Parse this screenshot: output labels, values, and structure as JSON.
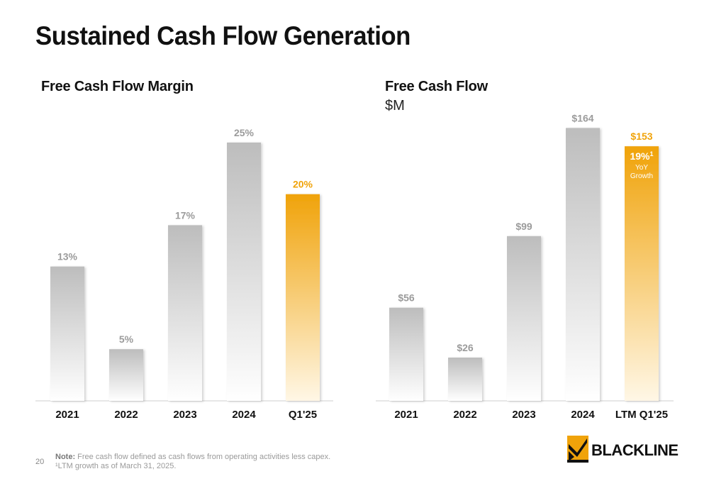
{
  "page_title": "Sustained Cash Flow Generation",
  "chart_data": [
    {
      "type": "bar",
      "title": "Free Cash Flow Margin",
      "subtitle": "",
      "categories": [
        "2021",
        "2022",
        "2023",
        "2024",
        "Q1'25"
      ],
      "values": [
        13,
        5,
        17,
        25,
        20
      ],
      "value_labels": [
        "13%",
        "5%",
        "17%",
        "25%",
        "20%"
      ],
      "highlight_index": 4,
      "ylim": [
        0,
        27.6
      ],
      "grid": false,
      "colors": {
        "base": "#bdbdbd",
        "highlight": "#f0a30a",
        "label_base": "#9b9b9b",
        "label_highlight": "#f0a30a"
      }
    },
    {
      "type": "bar",
      "title": "Free Cash Flow",
      "subtitle": "$M",
      "categories": [
        "2021",
        "2022",
        "2023",
        "2024",
        "LTM Q1'25"
      ],
      "values": [
        56,
        26,
        99,
        164,
        153
      ],
      "value_labels": [
        "$56",
        "$26",
        "$99",
        "$164",
        "$153"
      ],
      "highlight_index": 4,
      "highlight_annotation": {
        "main": "19%",
        "superscript": "1",
        "line1": "YoY",
        "line2": "Growth"
      },
      "ylim": [
        0,
        171.4
      ],
      "grid": false,
      "colors": {
        "base": "#bdbdbd",
        "highlight": "#f0a30a",
        "label_base": "#9b9b9b",
        "label_highlight": "#f0a30a"
      }
    }
  ],
  "footer": {
    "page_number": "20",
    "note_label": "Note:",
    "note_text": " Free cash flow defined as cash flows from operating activities less capex.",
    "footnote": "¹LTM growth as of March 31, 2025."
  },
  "logo": {
    "text": "BLACKLINE",
    "color": "#f0a30a"
  }
}
